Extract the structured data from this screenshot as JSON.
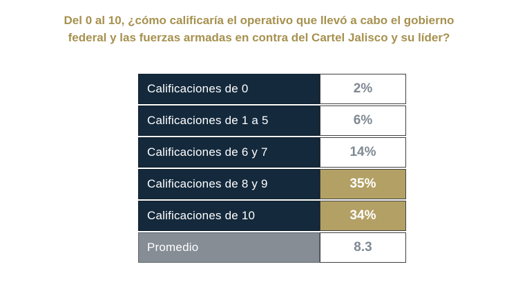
{
  "title": "Del 0 al 10, ¿cómo calificaría el operativo que llevó a cabo el gobierno\nfederal y las fuerzas armadas en contra del Cartel Jalisco y su líder?",
  "colors": {
    "title_text": "#a6914f",
    "label_cell_navy": "#14293c",
    "highlight_gold": "#b3a064",
    "average_row_gray": "#868d95",
    "value_text_gray": "#7f8993",
    "label_text": "#ffffff"
  },
  "table": {
    "rows": [
      {
        "label": "Calificaciones de 0",
        "value": "2%"
      },
      {
        "label": "Calificaciones de 1 a 5",
        "value": "6%"
      },
      {
        "label": "Calificaciones de 6 y 7",
        "value": "14%"
      },
      {
        "label": "Calificaciones de 8 y 9",
        "value": "35%"
      },
      {
        "label": "Calificaciones de 10",
        "value": "34%"
      },
      {
        "label": "Promedio",
        "value": "8.3"
      }
    ]
  },
  "chart_data": {
    "type": "table",
    "title": "Del 0 al 10, ¿cómo calificaría el operativo que llevó a cabo el gobierno federal y las fuerzas armadas en contra del Cartel Jalisco y su líder?",
    "categories": [
      "Calificaciones de 0",
      "Calificaciones de 1 a 5",
      "Calificaciones de 6 y 7",
      "Calificaciones de 8 y 9",
      "Calificaciones de 10",
      "Promedio"
    ],
    "values": [
      2,
      6,
      14,
      35,
      34,
      8.3
    ],
    "value_labels": [
      "2%",
      "6%",
      "14%",
      "35%",
      "34%",
      "8.3"
    ],
    "unit": "percent (last row is average score out of 10)",
    "highlighted_rows": [
      "Calificaciones de 8 y 9",
      "Calificaciones de 10"
    ],
    "legend_position": "none",
    "grid": false
  }
}
